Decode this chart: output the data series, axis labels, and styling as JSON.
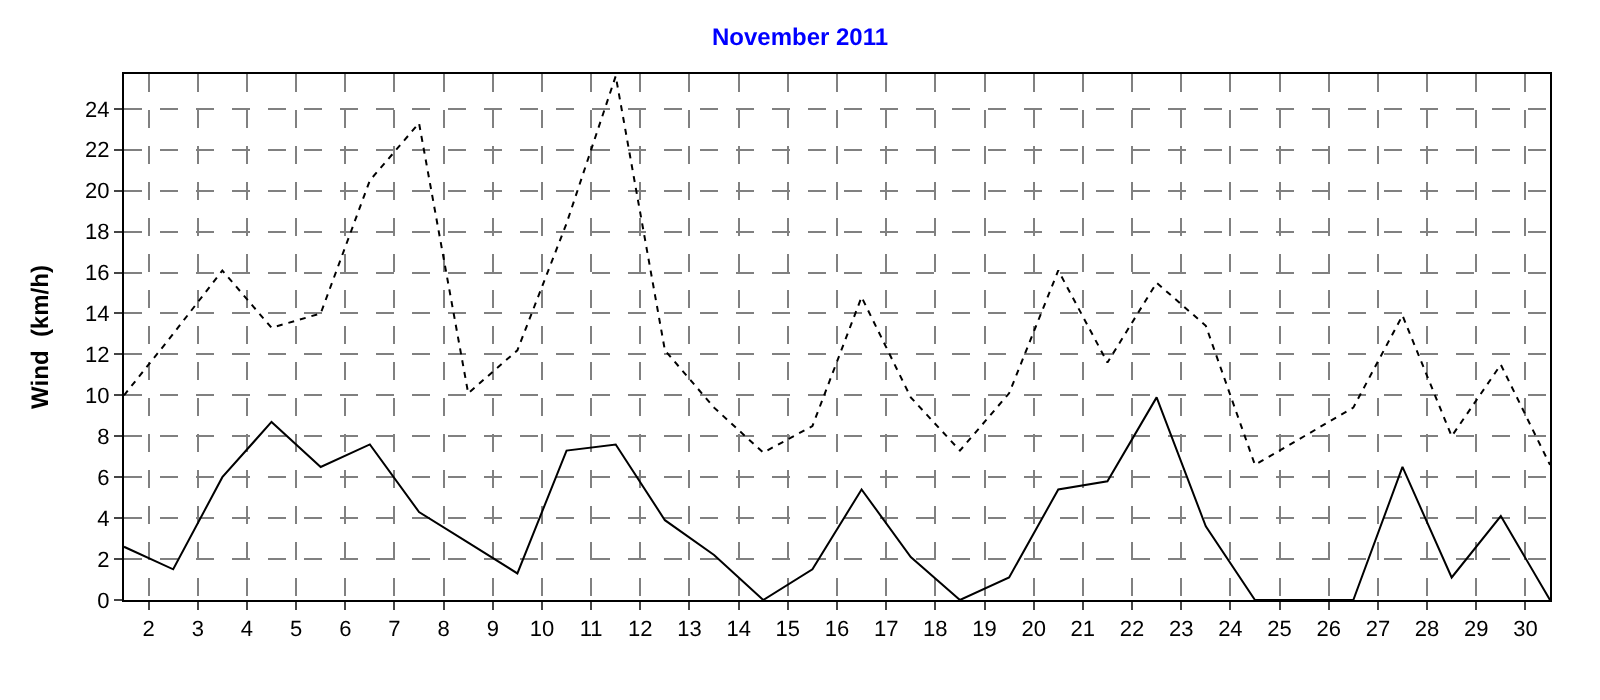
{
  "chart_data": {
    "type": "line",
    "title": "November 2011",
    "ylabel": "Wind  (km/h)",
    "x": [
      1.5,
      2.5,
      3.5,
      4.5,
      5.5,
      6.5,
      7.5,
      8.5,
      9.5,
      10.5,
      11.5,
      12.5,
      13.5,
      14.5,
      15.5,
      16.5,
      17.5,
      18.5,
      19.5,
      20.5,
      21.5,
      22.5,
      23.5,
      24.5,
      25.5,
      26.5,
      27.5,
      28.5,
      29.5,
      30.5
    ],
    "series": [
      {
        "color": "#000000",
        "line_style": "dotted",
        "values": [
          10.0,
          13.0,
          16.1,
          13.3,
          14.0,
          20.5,
          23.3,
          10.1,
          12.2,
          18.4,
          25.6,
          12.2,
          9.4,
          7.2,
          8.5,
          14.8,
          9.9,
          7.3,
          10.1,
          16.1,
          11.6,
          15.5,
          13.4,
          6.6,
          8.0,
          9.4,
          13.9,
          8.0,
          11.5,
          6.6
        ]
      },
      {
        "color": "#000000",
        "line_style": "solid",
        "values": [
          2.6,
          1.5,
          6.0,
          8.7,
          6.5,
          7.6,
          4.3,
          2.8,
          1.3,
          7.3,
          7.6,
          3.9,
          2.2,
          0,
          1.5,
          5.4,
          2.1,
          0,
          1.1,
          5.4,
          5.8,
          9.9,
          3.6,
          0,
          0,
          0,
          6.5,
          1.1,
          4.1,
          0
        ]
      }
    ],
    "xlim": [
      1.5,
      30.5
    ],
    "xticks": [
      2,
      3,
      4,
      5,
      6,
      7,
      8,
      9,
      10,
      11,
      12,
      13,
      14,
      15,
      16,
      17,
      18,
      19,
      20,
      21,
      22,
      23,
      24,
      25,
      26,
      27,
      28,
      29,
      30
    ],
    "ylim": [
      0,
      25.7
    ],
    "yticks": [
      0,
      2,
      4,
      6,
      8,
      10,
      12,
      14,
      16,
      18,
      20,
      22,
      24
    ],
    "grid": true,
    "marker": "none"
  }
}
